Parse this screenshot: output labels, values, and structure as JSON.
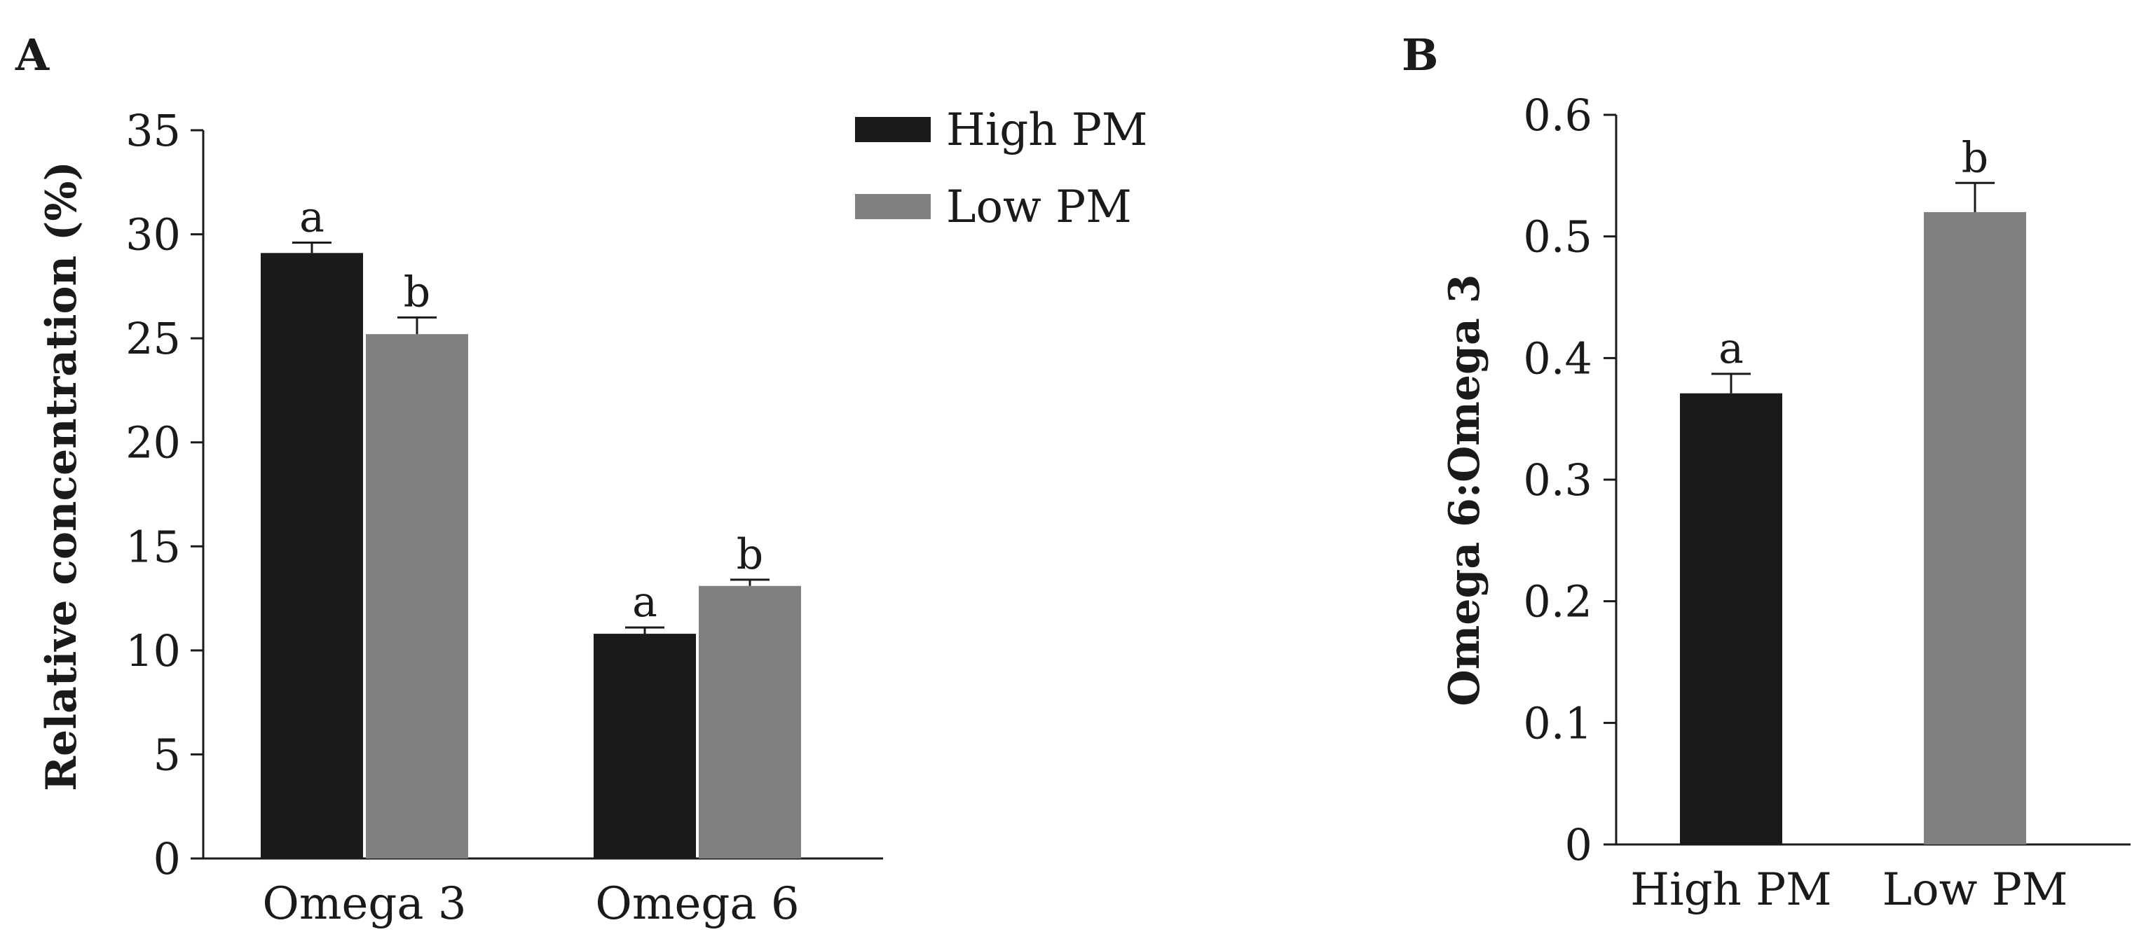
{
  "chart_data": [
    {
      "panel": "A",
      "type": "bar",
      "categories": [
        "Omega 3",
        "Omega 6"
      ],
      "ylabel": "Relative concentration (%)",
      "ylim": [
        0,
        35
      ],
      "yticks": [
        "0",
        "5",
        "10",
        "15",
        "20",
        "25",
        "30",
        "35"
      ],
      "series": [
        {
          "name": "High PM",
          "color": "#1a1a1a",
          "values": [
            29.1,
            10.8
          ],
          "errors": [
            0.5,
            0.3
          ],
          "labels": [
            "a",
            "a"
          ]
        },
        {
          "name": "Low PM",
          "color": "#808080",
          "values": [
            25.2,
            13.1
          ],
          "errors": [
            0.8,
            0.3
          ],
          "labels": [
            "b",
            "b"
          ]
        }
      ],
      "legend": "top-right"
    },
    {
      "panel": "B",
      "type": "bar",
      "categories": [
        "High PM",
        "Low PM"
      ],
      "ylabel": "Omega 6:Omega 3",
      "ylim": [
        0,
        0.6
      ],
      "yticks": [
        "0",
        "0.1",
        "0.2",
        "0.3",
        "0.4",
        "0.5",
        "0.6"
      ],
      "values": [
        0.371,
        0.52
      ],
      "errors": [
        0.016,
        0.024
      ],
      "labels": [
        "a",
        "b"
      ],
      "colors": [
        "#1a1a1a",
        "#808080"
      ]
    }
  ]
}
